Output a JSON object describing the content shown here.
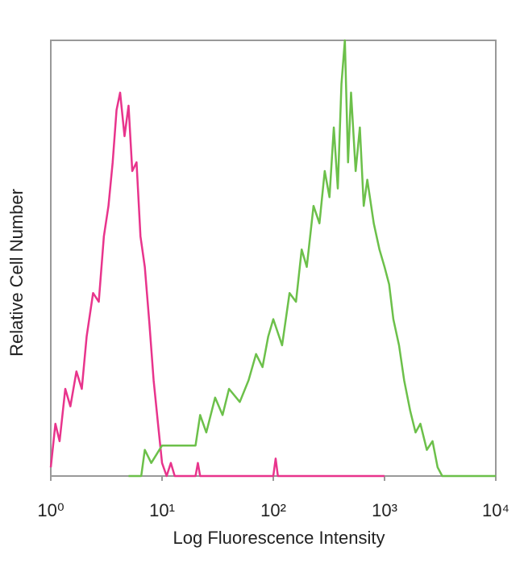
{
  "chart_data": {
    "type": "line",
    "xlabel": "Log Fluorescence Intensity",
    "ylabel": "Relative Cell Number",
    "xscale": "log",
    "xlim": [
      1,
      10000
    ],
    "xticks": [
      {
        "value": 1,
        "label": "10⁰"
      },
      {
        "value": 10,
        "label": "10¹"
      },
      {
        "value": 100,
        "label": "10²"
      },
      {
        "value": 1000,
        "label": "10³"
      },
      {
        "value": 10000,
        "label": "10⁴"
      }
    ],
    "ylim": [
      0,
      100
    ],
    "series": [
      {
        "color": "#e8348c",
        "x": [
          1,
          1.1,
          1.2,
          1.35,
          1.5,
          1.7,
          1.9,
          2.1,
          2.4,
          2.7,
          3.0,
          3.3,
          3.6,
          3.9,
          4.2,
          4.6,
          5.0,
          5.4,
          5.9,
          6.4,
          7.0,
          7.7,
          8.4,
          9.2,
          10,
          11,
          12,
          13,
          20,
          21,
          22,
          100,
          105,
          110,
          1000
        ],
        "values": [
          2,
          12,
          8,
          20,
          16,
          24,
          20,
          32,
          42,
          40,
          55,
          62,
          72,
          84,
          88,
          78,
          85,
          70,
          72,
          55,
          48,
          35,
          22,
          12,
          3,
          0,
          3,
          0,
          0,
          3,
          0,
          0,
          4,
          0,
          0
        ]
      },
      {
        "color": "#6cc04a",
        "x": [
          5,
          6.5,
          7,
          8,
          10,
          15,
          20,
          22,
          25,
          30,
          35,
          40,
          50,
          60,
          70,
          80,
          90,
          100,
          120,
          140,
          160,
          180,
          200,
          230,
          260,
          290,
          320,
          350,
          380,
          410,
          440,
          470,
          500,
          550,
          600,
          650,
          700,
          800,
          900,
          1000,
          1100,
          1200,
          1350,
          1500,
          1700,
          1900,
          2100,
          2400,
          2700,
          3000,
          3300,
          10000
        ],
        "values": [
          0,
          0,
          6,
          3,
          7,
          7,
          7,
          14,
          10,
          18,
          14,
          20,
          17,
          22,
          28,
          25,
          32,
          36,
          30,
          42,
          40,
          52,
          48,
          62,
          58,
          70,
          64,
          80,
          66,
          90,
          100,
          72,
          88,
          70,
          80,
          62,
          68,
          58,
          52,
          48,
          44,
          36,
          30,
          22,
          15,
          10,
          12,
          6,
          8,
          2,
          0,
          0
        ]
      }
    ]
  }
}
